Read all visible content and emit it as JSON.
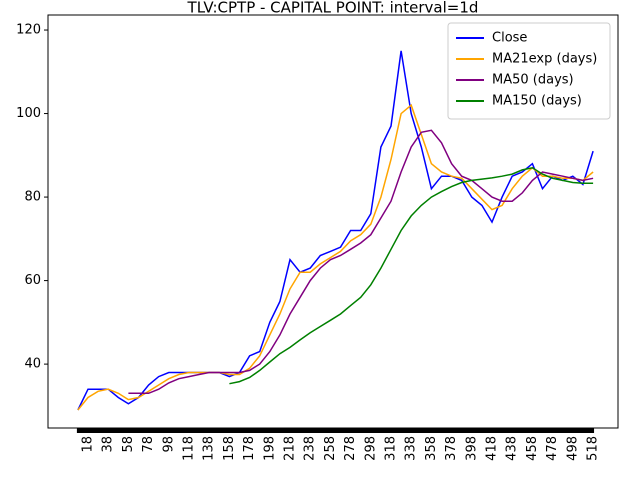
{
  "chart_data": {
    "type": "line",
    "title": "TLV:CPTP - CAPITAL POINT: interval=1d",
    "x": [
      8,
      18,
      28,
      38,
      48,
      58,
      68,
      78,
      88,
      98,
      108,
      118,
      128,
      138,
      148,
      158,
      168,
      178,
      188,
      198,
      208,
      218,
      228,
      238,
      248,
      258,
      268,
      278,
      288,
      298,
      308,
      318,
      328,
      338,
      348,
      358,
      368,
      378,
      388,
      398,
      408,
      418,
      428,
      438,
      448,
      458,
      468,
      478,
      488,
      498,
      508,
      518
    ],
    "series": [
      {
        "name": "Close",
        "color": "#0000ff",
        "values": [
          29,
          34,
          34,
          34,
          32,
          30.5,
          32,
          35,
          37,
          38,
          38,
          38,
          38,
          38,
          38,
          37,
          38,
          42,
          43,
          50,
          55,
          65,
          62,
          63,
          66,
          67,
          68,
          72,
          72,
          76,
          92,
          97,
          115,
          100,
          92,
          82,
          85,
          85,
          84,
          80,
          78,
          74,
          80,
          85,
          86,
          88,
          82,
          85,
          84,
          85,
          83,
          91
        ]
      },
      {
        "name": "MA21exp (days)",
        "color": "#ffa500",
        "values": [
          29,
          32,
          33.5,
          34,
          33,
          31.5,
          32,
          33.5,
          35,
          36.5,
          37.5,
          38,
          38,
          38,
          38,
          37.5,
          37.5,
          39,
          42,
          47,
          52,
          58,
          62,
          62,
          64,
          65.5,
          67,
          69.5,
          71,
          73.5,
          80,
          89,
          100,
          102,
          95,
          88,
          86,
          85,
          84.5,
          82,
          79.5,
          77,
          78,
          82,
          85,
          87,
          85,
          85,
          84.5,
          84.5,
          84,
          86
        ]
      },
      {
        "name": "MA50 (days)",
        "color": "#800080",
        "values": [
          null,
          null,
          null,
          null,
          null,
          33,
          33,
          33,
          34,
          35.5,
          36.5,
          37,
          37.5,
          38,
          38,
          38,
          38,
          38.5,
          40,
          43,
          47,
          52,
          56,
          60,
          63,
          65,
          66,
          67.5,
          69,
          71,
          75,
          79,
          86,
          92,
          95.5,
          96,
          93,
          88,
          85,
          84,
          82,
          80,
          79,
          79,
          81,
          84,
          86,
          85.5,
          85,
          84.5,
          84,
          84.5
        ]
      },
      {
        "name": "MA150 (days)",
        "color": "#008000",
        "values": [
          null,
          null,
          null,
          null,
          null,
          null,
          null,
          null,
          null,
          null,
          null,
          null,
          null,
          null,
          null,
          35.3,
          35.8,
          36.8,
          38.5,
          40.5,
          42.5,
          44,
          45.8,
          47.5,
          49,
          50.5,
          52,
          54,
          56,
          59,
          63,
          67.5,
          72,
          75.5,
          78,
          80,
          81.3,
          82.5,
          83.5,
          84,
          84.3,
          84.6,
          85,
          85.5,
          86.5,
          87,
          85.5,
          84.5,
          84,
          83.5,
          83.3,
          83.3
        ]
      }
    ],
    "xlim": [
      -21.6,
      542.7
    ],
    "ylim": [
      24.7,
      123.6
    ],
    "xticks": [
      18,
      38,
      58,
      78,
      98,
      118,
      138,
      158,
      178,
      198,
      218,
      238,
      258,
      278,
      298,
      318,
      338,
      358,
      378,
      398,
      418,
      438,
      458,
      478,
      498,
      518
    ],
    "yticks": [
      40,
      60,
      80,
      100,
      120
    ],
    "legend": "upper right"
  }
}
